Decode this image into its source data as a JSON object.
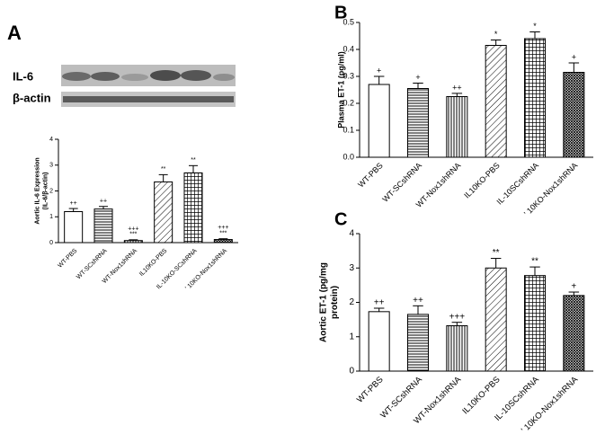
{
  "chart_data": [
    {
      "type": "bar",
      "panel": "A",
      "blot_labels": [
        "IL-6",
        "β-actin"
      ],
      "ylabel": [
        "Aortic IL-6 Expression",
        "(IL-6/β-actin)"
      ],
      "categories": [
        "WT-PBS",
        "WT-SCshRNA",
        "WT-Nox1shRNA",
        "IL10KO-PBS",
        "IL-10KO-SCshRNA",
        "' 10KO-Nox1shRNA"
      ],
      "values": [
        1.2,
        1.3,
        0.08,
        2.35,
        2.7,
        0.12
      ],
      "errors": [
        0.12,
        0.1,
        0.03,
        0.28,
        0.28,
        0.03
      ],
      "annotations": [
        [
          "++"
        ],
        [
          "++"
        ],
        [
          "+++",
          "***"
        ],
        [
          "**"
        ],
        [
          "**"
        ],
        [
          "+++",
          "***"
        ]
      ],
      "fills": [
        "white",
        "hlines",
        "vlines",
        "diag",
        "grid",
        "dense"
      ],
      "ylim": [
        0,
        4
      ],
      "yticks": [
        0,
        1,
        2,
        3,
        4
      ]
    },
    {
      "type": "bar",
      "panel": "B",
      "ylabel": [
        "Plasma ET-1 (pg/ml)"
      ],
      "categories": [
        "WT-PBS",
        "WT-SCshRNA",
        "WT-Nox1shRNA",
        "IL10KO-PBS",
        "IL-10SCshRNA",
        "' 10KO-Nox1shRNA"
      ],
      "values": [
        0.27,
        0.255,
        0.225,
        0.415,
        0.44,
        0.315
      ],
      "errors": [
        0.03,
        0.02,
        0.012,
        0.02,
        0.025,
        0.035
      ],
      "annotations": [
        [
          "+"
        ],
        [
          "+"
        ],
        [
          "++"
        ],
        [
          "*"
        ],
        [
          "*"
        ],
        [
          "+"
        ]
      ],
      "fills": [
        "white",
        "hlines",
        "vlines",
        "diag",
        "grid",
        "dense"
      ],
      "ylim": [
        0,
        0.5
      ],
      "yticks": [
        {
          "value": 0,
          "label": "0.0"
        },
        0.1,
        0.2,
        0.3,
        0.4,
        0.5
      ]
    },
    {
      "type": "bar",
      "panel": "C",
      "ylabel": [
        "Aortic ET-1 (pg/mg",
        "protein)"
      ],
      "categories": [
        "WT-PBS",
        "WT-SCshRNA",
        "WT-Nox1shRNA",
        "IL10KO-PBS",
        "IL-10SCshRNA",
        "' 10KO-Nox1shRNA"
      ],
      "values": [
        1.73,
        1.65,
        1.32,
        3.0,
        2.78,
        2.2
      ],
      "errors": [
        0.1,
        0.25,
        0.1,
        0.28,
        0.25,
        0.1
      ],
      "annotations": [
        [
          "++"
        ],
        [
          "++"
        ],
        [
          "+++"
        ],
        [
          "**"
        ],
        [
          "**"
        ],
        [
          "+"
        ]
      ],
      "fills": [
        "white",
        "hlines",
        "vlines",
        "diag",
        "grid",
        "dense"
      ],
      "ylim": [
        0,
        4
      ],
      "yticks": [
        0,
        1,
        2,
        3,
        4
      ]
    }
  ]
}
